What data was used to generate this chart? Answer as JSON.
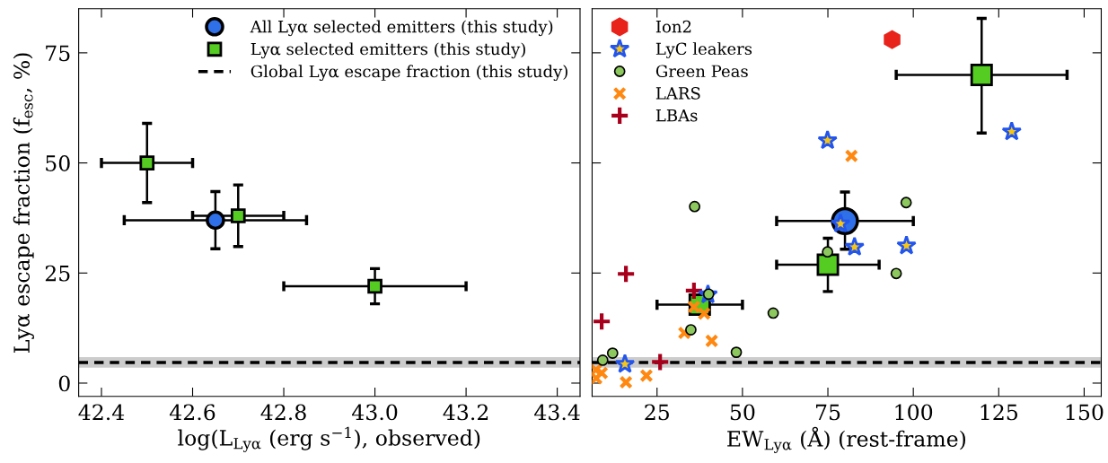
{
  "chart_data": [
    {
      "type": "scatter",
      "xlabel": "log(L$_{Lyα}$ (erg s$^{−1}$), observed)",
      "ylabel": "Lyα escape fraction (f$_{esc}$, %)",
      "xlim": [
        42.35,
        43.45
      ],
      "xticks": [
        {
          "value": 42.4,
          "label": "42.4"
        },
        {
          "value": 42.6,
          "label": "42.6"
        },
        {
          "value": 42.8,
          "label": "42.8"
        },
        {
          "value": 43.0,
          "label": "43.0"
        },
        {
          "value": 43.2,
          "label": "43.2"
        },
        {
          "value": 43.4,
          "label": "43.4"
        }
      ],
      "ylim": [
        -3,
        85
      ],
      "yticks": [
        0,
        25,
        50,
        75
      ],
      "grid": false,
      "legend": "top right",
      "series": [
        {
          "name": "All Lyα selected emitters (this study)",
          "color": "#2f6fe8",
          "marker": "circle",
          "x": [
            42.65
          ],
          "values": [
            37
          ],
          "xerrors": [
            [
              42.45,
              42.85
            ]
          ],
          "errors": [
            [
              30.5,
              43.5
            ]
          ]
        },
        {
          "name": "Lyα selected emitters (this study)",
          "color": "#55cc22",
          "marker": "square",
          "x": [
            42.5,
            42.7,
            43.0
          ],
          "values": [
            50,
            38,
            22
          ],
          "xerrors": [
            [
              42.4,
              42.6
            ],
            [
              42.6,
              42.8
            ],
            [
              42.8,
              43.2
            ]
          ],
          "errors": [
            [
              41,
              59
            ],
            [
              31,
              45
            ],
            [
              18,
              26
            ]
          ]
        }
      ],
      "ref_lines": [
        {
          "axis": "y",
          "value": 4.7,
          "label": "Global Lyα escape fraction (this study)",
          "color": "#000000",
          "line_style": "dashed"
        }
      ],
      "bands": [
        {
          "axis": "y",
          "from": 3.5,
          "to": 5.9,
          "color": "#cccccc"
        }
      ]
    },
    {
      "type": "scatter",
      "xlabel": "EW$_{Lyα}$ (Å) (rest-frame)",
      "xlim": [
        6,
        155
      ],
      "xticks": [
        25,
        50,
        75,
        100,
        125,
        150
      ],
      "ylim": [
        -3,
        85
      ],
      "yticks": [
        {
          "value": 0,
          "label": null
        },
        {
          "value": 25,
          "label": null
        },
        {
          "value": 50,
          "label": null
        },
        {
          "value": 75,
          "label": null
        }
      ],
      "tick_labels": "x",
      "grid": false,
      "legend": "top left",
      "series": [
        {
          "color": "#2f6fe8",
          "marker": "circle",
          "x": [
            80
          ],
          "values": [
            36.8
          ],
          "xerrors": [
            [
              60,
              100
            ]
          ],
          "errors": [
            [
              30.4,
              43.4
            ]
          ]
        },
        {
          "color": "#55cc22",
          "marker": "square",
          "x": [
            120,
            75,
            37.5
          ],
          "values": [
            70,
            26.9,
            17.8
          ],
          "xerrors": [
            [
              95,
              145
            ],
            [
              60,
              90
            ],
            [
              25,
              50
            ]
          ],
          "errors": [
            [
              56.8,
              82.8
            ],
            [
              20.8,
              32.9
            ],
            null
          ]
        },
        {
          "name": "Ion2",
          "color": "#e8231c",
          "x": [
            93.8
          ],
          "values": [
            78
          ]
        },
        {
          "name": "LyC leakers",
          "color": "#f5c518",
          "marker": "star",
          "x": [
            74.9,
            128.8,
            78.7,
            82.8,
            98,
            39.9,
            15.6
          ],
          "values": [
            55.1,
            57.1,
            36.2,
            30.9,
            31.2,
            20.1,
            4.3
          ]
        },
        {
          "name": "Green Peas",
          "color": "#8dc85e",
          "marker": "circle",
          "x": [
            36,
            97.9,
            74.9,
            95,
            40.1,
            59,
            34.9,
            48.2,
            12,
            9.1
          ],
          "values": [
            40.1,
            41,
            29.8,
            24.9,
            20.2,
            15.9,
            12.1,
            7.0,
            6.8,
            5.2
          ]
        },
        {
          "name": "LARS",
          "color": "#ff8811",
          "marker": "cross",
          "x": [
            81.9,
            35.8,
            38.8,
            33,
            41,
            21.9,
            15.9,
            8.8,
            7.1,
            7.2
          ],
          "values": [
            51.6,
            17.3,
            15.8,
            11.4,
            9.6,
            1.7,
            0.2,
            2.3,
            3.0,
            1.1
          ]
        },
        {
          "name": "LBAs",
          "color": "#a8001c",
          "marker": "plus",
          "x": [
            15.9,
            8.8,
            35.8,
            25.9
          ],
          "values": [
            24.8,
            14.0,
            21.0,
            4.8
          ]
        }
      ],
      "ref_lines": [
        {
          "axis": "y",
          "value": 4.7,
          "color": "#000000",
          "line_style": "dashed"
        }
      ],
      "bands": [
        {
          "axis": "y",
          "from": 3.5,
          "to": 5.9,
          "color": "#cccccc"
        }
      ]
    }
  ]
}
